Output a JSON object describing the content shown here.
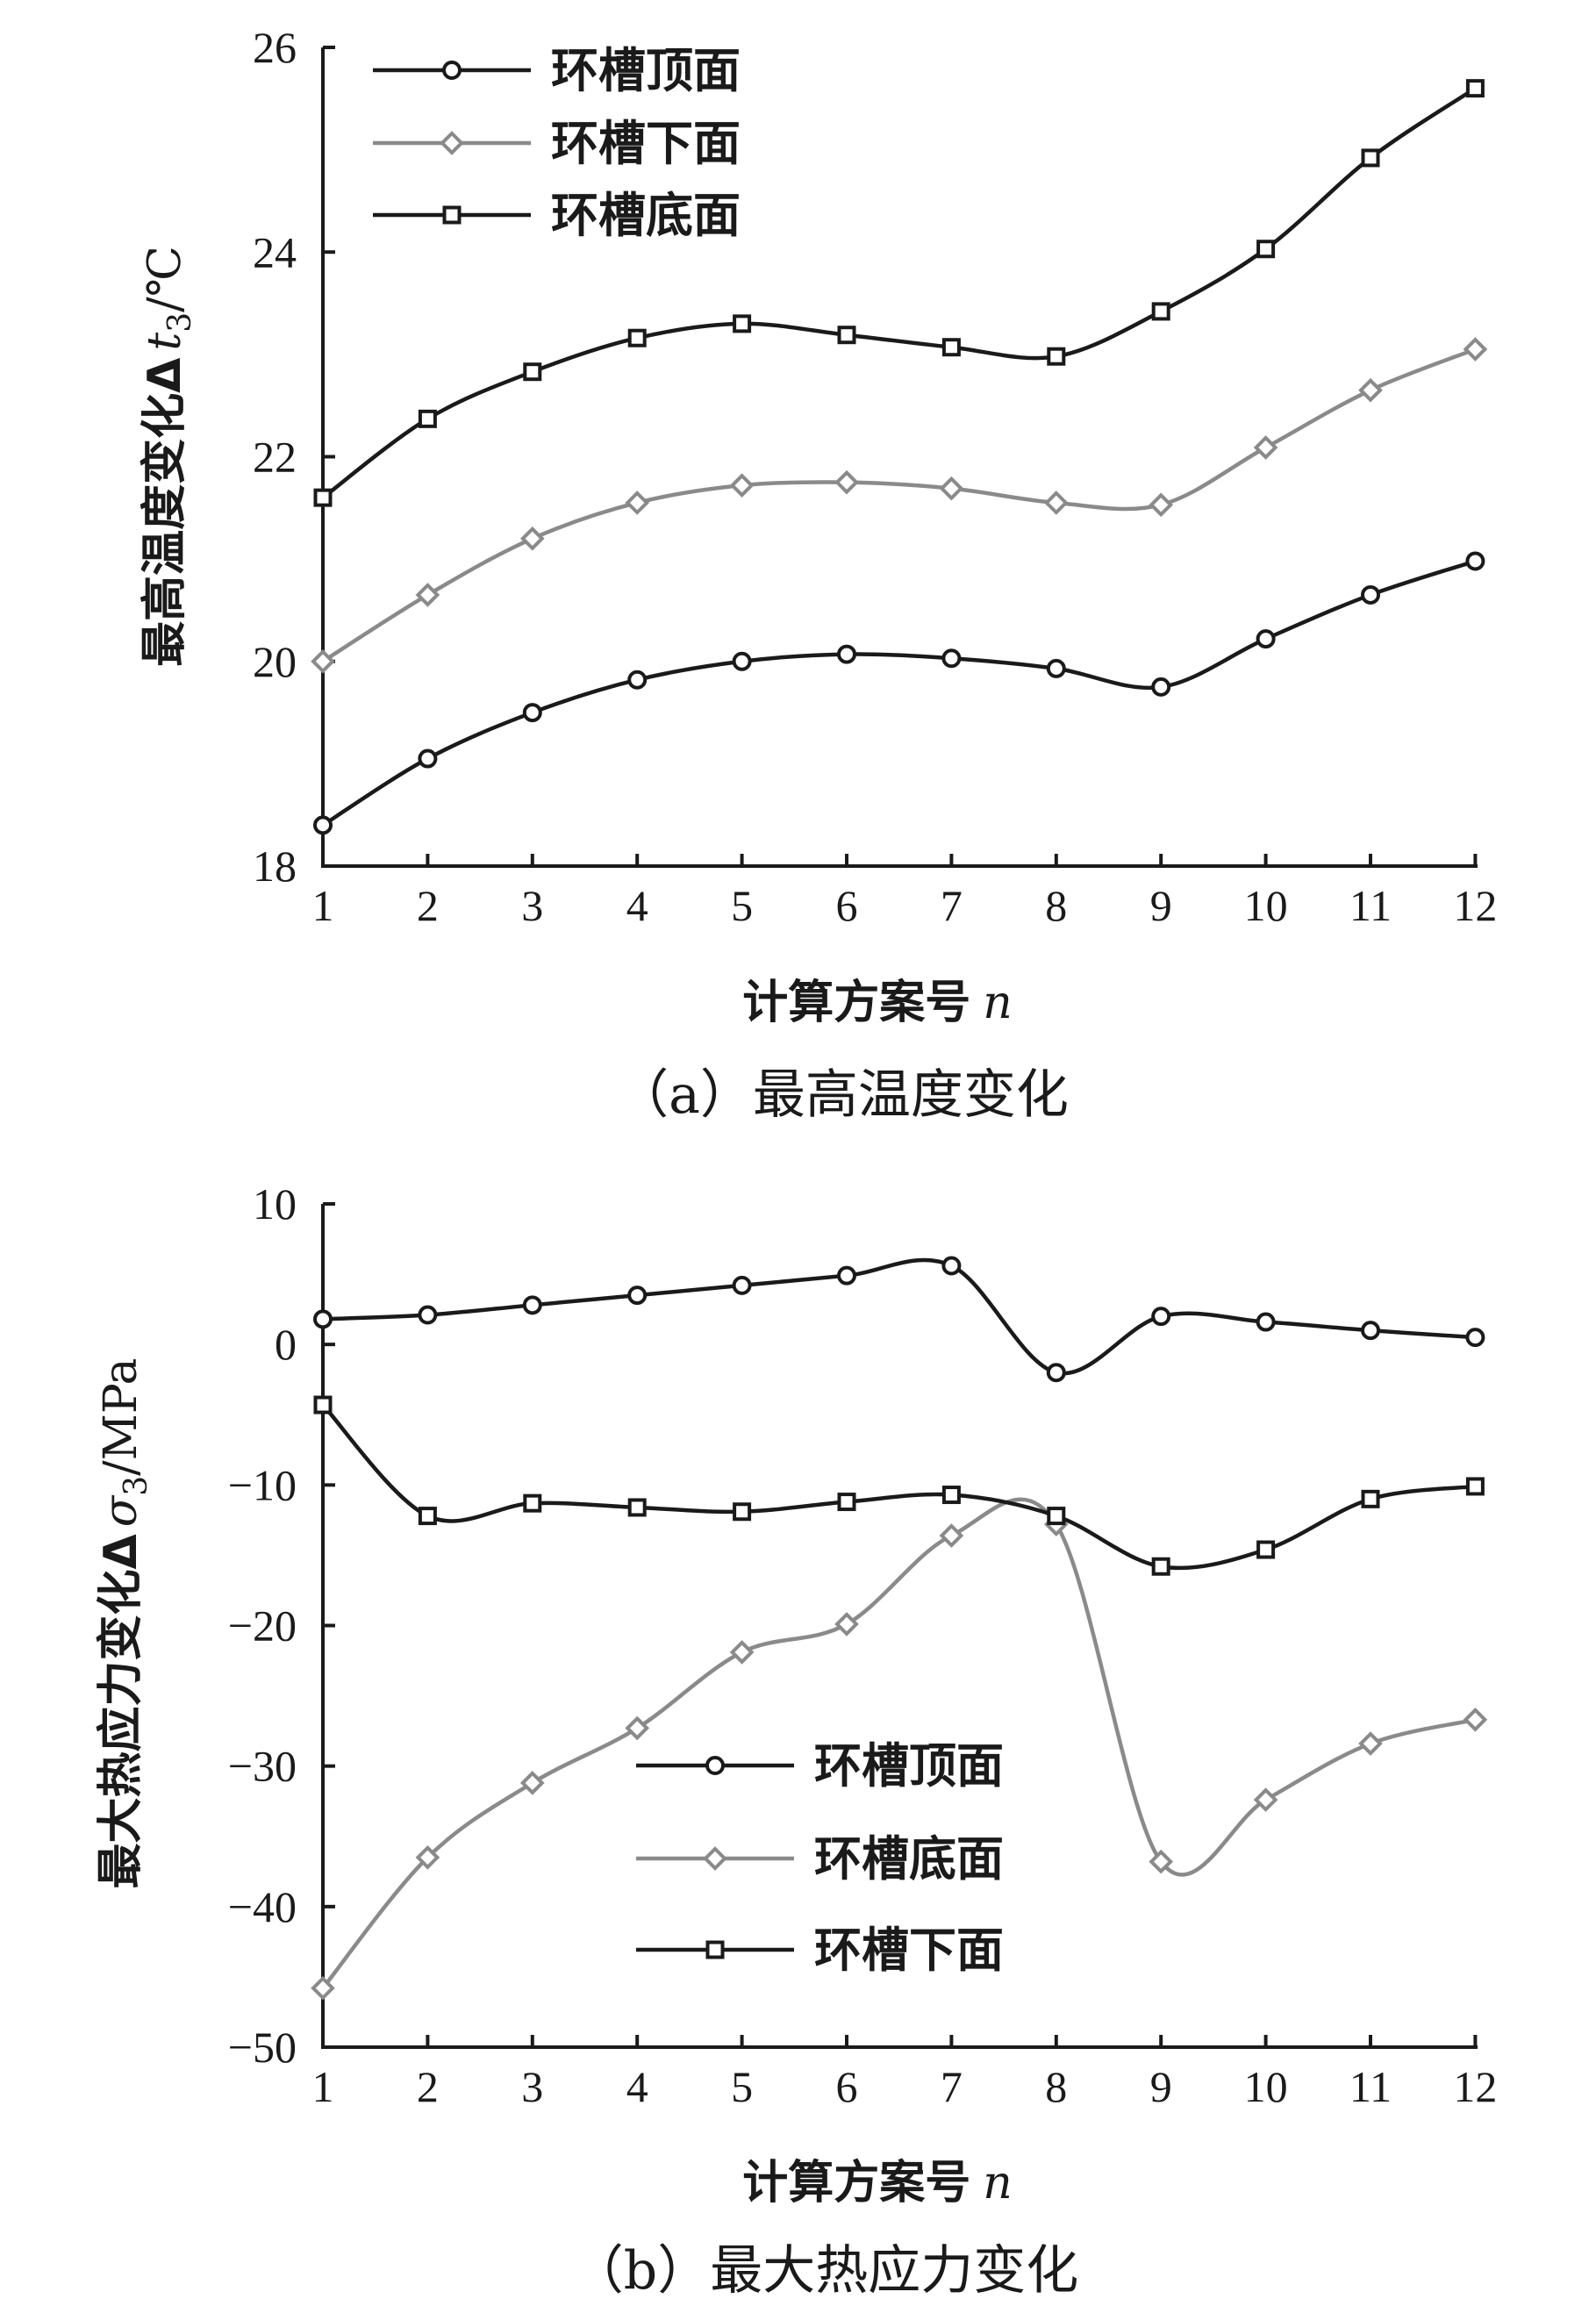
{
  "colors": {
    "dark": "#1a1a1a",
    "gray": "#8a8a8a"
  },
  "chart_data": [
    {
      "type": "line",
      "caption": "（a）最高温度变化",
      "xlabel": "计算方案号",
      "xlabel_var": "n",
      "ylabel": "最高温度变化Δ",
      "ylabel_var": "t",
      "ylabel_sub": "3",
      "ylabel_unit": "/℃",
      "categories": [
        1,
        2,
        3,
        4,
        5,
        6,
        7,
        8,
        9,
        10,
        11,
        12
      ],
      "ylim": [
        18,
        26
      ],
      "yticks": [
        18,
        20,
        22,
        24,
        26
      ],
      "legend_position": "top-left",
      "series": [
        {
          "name": "环槽顶面",
          "marker": "circle",
          "color": "#1a1a1a",
          "values": [
            18.4,
            19.05,
            19.5,
            19.82,
            20.0,
            20.07,
            20.03,
            19.93,
            19.75,
            20.22,
            20.65,
            20.98
          ]
        },
        {
          "name": "环槽下面",
          "marker": "diamond",
          "color": "#8a8a8a",
          "values": [
            20.0,
            20.65,
            21.2,
            21.55,
            21.72,
            21.75,
            21.69,
            21.55,
            21.53,
            22.09,
            22.65,
            23.05
          ]
        },
        {
          "name": "环槽底面",
          "marker": "square",
          "color": "#1a1a1a",
          "values": [
            21.6,
            22.37,
            22.83,
            23.16,
            23.3,
            23.19,
            23.07,
            22.98,
            23.42,
            24.03,
            24.92,
            25.6
          ]
        }
      ]
    },
    {
      "type": "line",
      "caption": "（b）最大热应力变化",
      "xlabel": "计算方案号",
      "xlabel_var": "n",
      "ylabel": "最大热应力变化Δ",
      "ylabel_var": "σ",
      "ylabel_sub": "3",
      "ylabel_unit": "/MPa",
      "categories": [
        1,
        2,
        3,
        4,
        5,
        6,
        7,
        8,
        9,
        10,
        11,
        12
      ],
      "ylim": [
        -50,
        10
      ],
      "yticks": [
        -50,
        -40,
        -30,
        -20,
        -10,
        0,
        10
      ],
      "legend_position": "bottom-center",
      "series": [
        {
          "name": "环槽顶面",
          "marker": "circle",
          "color": "#1a1a1a",
          "values": [
            1.8,
            2.1,
            2.8,
            3.5,
            4.2,
            4.9,
            5.6,
            -2.0,
            2.0,
            1.6,
            1.0,
            0.5
          ]
        },
        {
          "name": "环槽底面",
          "marker": "diamond",
          "color": "#8a8a8a",
          "values": [
            -45.8,
            -36.5,
            -31.2,
            -27.3,
            -21.9,
            -19.9,
            -13.6,
            -12.8,
            -36.8,
            -32.4,
            -28.4,
            -26.7
          ]
        },
        {
          "name": "环槽下面",
          "marker": "square",
          "color": "#1a1a1a",
          "values": [
            -4.3,
            -12.2,
            -11.3,
            -11.6,
            -11.9,
            -11.2,
            -10.7,
            -12.2,
            -15.8,
            -14.6,
            -11.0,
            -10.1
          ]
        }
      ]
    }
  ]
}
